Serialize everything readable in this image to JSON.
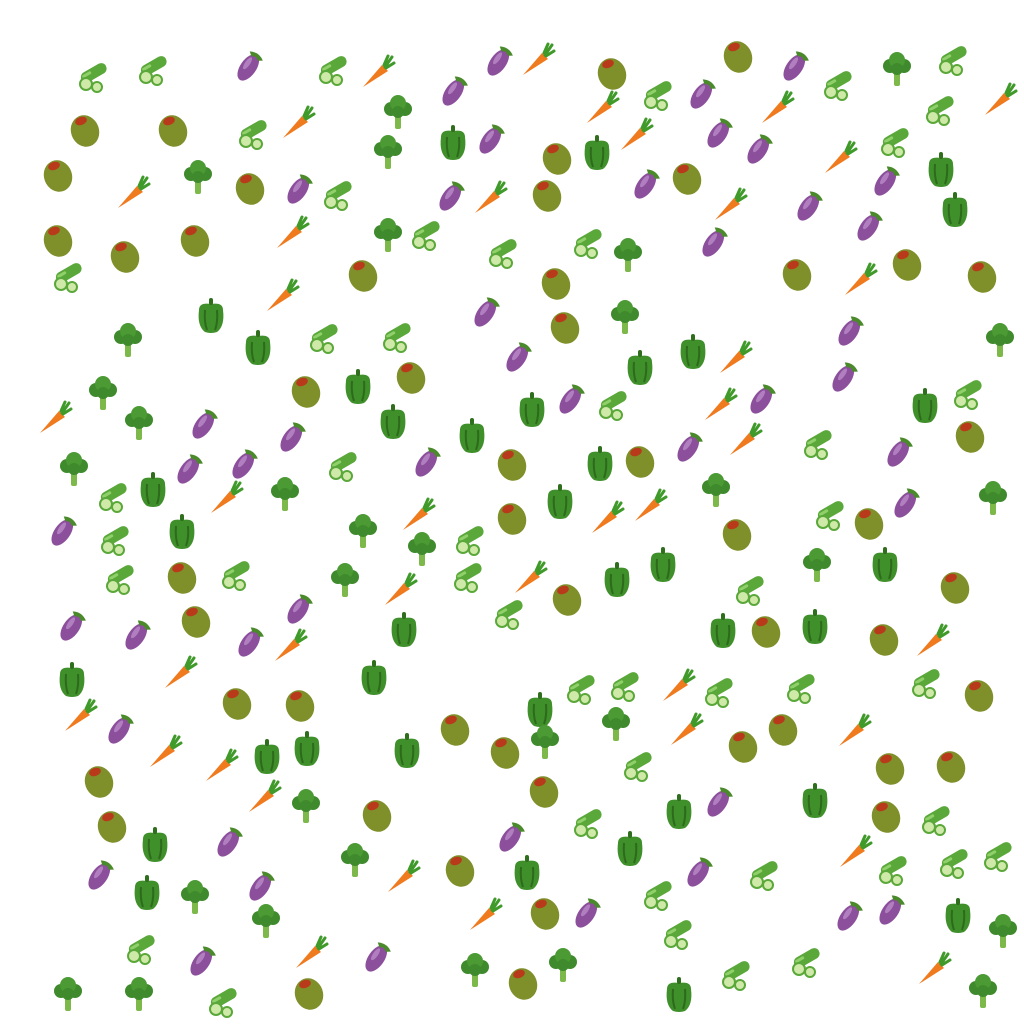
{
  "scene": {
    "background": "#ffffff",
    "kinds": {
      "cucumber": {
        "icon": "cucumber-icon"
      },
      "eggplant": {
        "icon": "eggplant-icon"
      },
      "carrot": {
        "icon": "carrot-icon"
      },
      "olive": {
        "icon": "olive-icon"
      },
      "broccoli": {
        "icon": "broccoli-icon"
      },
      "pepper": {
        "icon": "green-pepper-icon"
      }
    },
    "colors": {
      "cucumber": "#5aa83a",
      "eggplant": "#8b4f9c",
      "carrot": "#f07a1e",
      "olive": "#7f8f2a",
      "olive_pimento": "#b83a1a",
      "broccoli": "#3f8a2c",
      "pepper": "#3f8f2a"
    }
  }
}
